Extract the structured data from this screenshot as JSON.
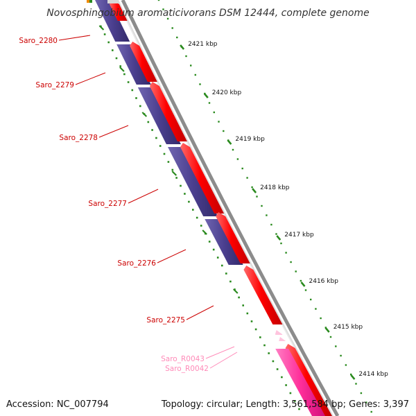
{
  "title": "Novosphingobium aromaticivorans DSM 12444, complete genome",
  "footer": {
    "accession": "Accession: NC_007794",
    "summary": "Topology: circular; Length: 3,561,584 bp; Genes: 3,397"
  },
  "scale": {
    "ticks": [
      "2421 kbp",
      "2420 kbp",
      "2419 kbp",
      "2418 kbp",
      "2417 kbp",
      "2416 kbp",
      "2415 kbp",
      "2414 kbp"
    ]
  },
  "genes": {
    "protein": [
      "Saro_2280",
      "Saro_2279",
      "Saro_2278",
      "Saro_2277",
      "Saro_2276",
      "Saro_2275"
    ],
    "rrna": [
      "Saro_R0043",
      "Saro_R0042"
    ]
  },
  "colors": {
    "cds": "#ff0000",
    "cog": "#4b3f8f",
    "rrna": "#ff3aa0",
    "rrna_label": "#ff8ab8",
    "gene_label": "#cc0000",
    "tick": "#2a8a1e",
    "backbone": "#8c8c8c"
  }
}
